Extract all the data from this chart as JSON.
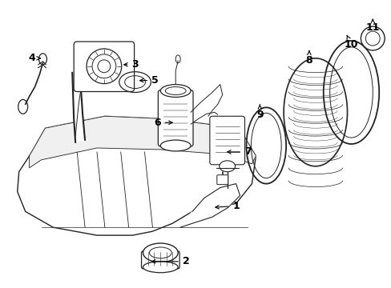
{
  "bg_color": "#ffffff",
  "line_color": "#222222",
  "text_color": "#000000",
  "fig_width": 4.89,
  "fig_height": 3.6,
  "dpi": 100
}
